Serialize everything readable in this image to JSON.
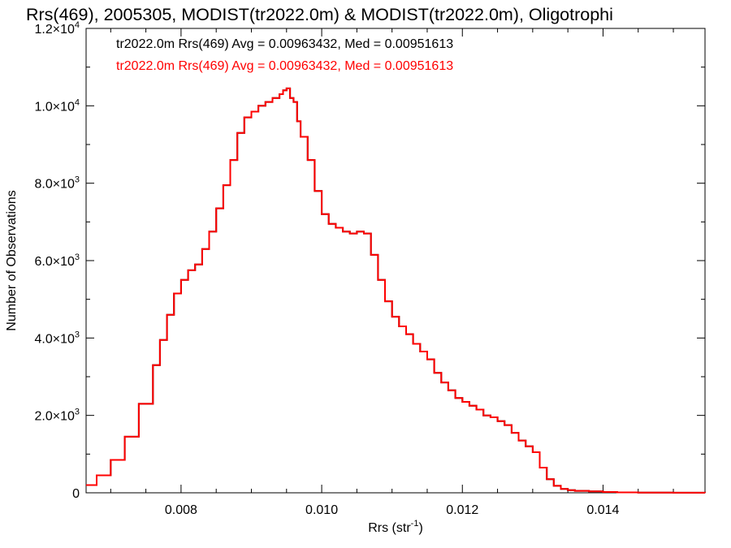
{
  "chart_data": {
    "type": "line",
    "title": "Rrs(469), 2005305, MODIST(tr2022.0m) & MODIST(tr2022.0m), Oligotrophi",
    "xlabel": "Rrs (str",
    "xlabel_sup": "-1",
    "xlabel_end": ")",
    "ylabel": "Number of Observations",
    "xlim": [
      0.00665,
      0.01545
    ],
    "ylim": [
      0,
      12000
    ],
    "xticks": [
      0.008,
      0.01,
      0.012,
      0.014
    ],
    "xtick_labels": [
      "0.008",
      "0.010",
      "0.012",
      "0.014"
    ],
    "yticks": [
      {
        "mant": "0",
        "exp": ""
      },
      {
        "mant": "2.0×10",
        "exp": "3"
      },
      {
        "mant": "4.0×10",
        "exp": "3"
      },
      {
        "mant": "6.0×10",
        "exp": "3"
      },
      {
        "mant": "8.0×10",
        "exp": "3"
      },
      {
        "mant": "1.0×10",
        "exp": "4"
      },
      {
        "mant": "1.2×10",
        "exp": "4"
      }
    ],
    "annotations": [
      {
        "text": "tr2022.0m Rrs(469) Avg = 0.00963432, Med = 0.00951613",
        "color": "#000000"
      },
      {
        "text": "tr2022.0m Rrs(469) Avg = 0.00963432, Med = 0.00951613",
        "color": "#ff0000"
      }
    ],
    "series": [
      {
        "color": "#000000",
        "x": [
          0.00665,
          0.0068,
          0.007,
          0.0072,
          0.0074,
          0.0076,
          0.0077,
          0.0078,
          0.0079,
          0.008,
          0.0081,
          0.0082,
          0.0083,
          0.0084,
          0.0085,
          0.0086,
          0.0087,
          0.0088,
          0.0089,
          0.009,
          0.0091,
          0.0092,
          0.0093,
          0.0094,
          0.00945,
          0.0095,
          0.00955,
          0.0096,
          0.00965,
          0.0097,
          0.0098,
          0.0099,
          0.01,
          0.0101,
          0.0102,
          0.0103,
          0.0104,
          0.0105,
          0.0106,
          0.0107,
          0.0108,
          0.0109,
          0.011,
          0.0111,
          0.0112,
          0.0113,
          0.0114,
          0.0115,
          0.0116,
          0.0117,
          0.0118,
          0.0119,
          0.012,
          0.0121,
          0.0122,
          0.0123,
          0.0124,
          0.0125,
          0.0126,
          0.0127,
          0.0128,
          0.0129,
          0.013,
          0.0131,
          0.0132,
          0.0133,
          0.0134,
          0.0135,
          0.0136,
          0.0138,
          0.014,
          0.0142,
          0.0145,
          0.015,
          0.01545
        ],
        "y": [
          200,
          450,
          850,
          1450,
          2300,
          3300,
          3950,
          4600,
          5150,
          5500,
          5750,
          5900,
          6300,
          6750,
          7350,
          7950,
          8600,
          9300,
          9700,
          9850,
          10000,
          10100,
          10200,
          10300,
          10400,
          10450,
          10200,
          10100,
          9600,
          9200,
          8600,
          7800,
          7200,
          6950,
          6850,
          6750,
          6700,
          6750,
          6700,
          6150,
          5500,
          4950,
          4550,
          4300,
          4100,
          3850,
          3650,
          3450,
          3100,
          2850,
          2650,
          2450,
          2350,
          2250,
          2150,
          2000,
          1950,
          1850,
          1750,
          1550,
          1350,
          1200,
          1050,
          650,
          350,
          180,
          100,
          70,
          50,
          35,
          20,
          10,
          5,
          2,
          0
        ]
      },
      {
        "color": "#ff0000",
        "x": [
          0.00665,
          0.0068,
          0.007,
          0.0072,
          0.0074,
          0.0076,
          0.0077,
          0.0078,
          0.0079,
          0.008,
          0.0081,
          0.0082,
          0.0083,
          0.0084,
          0.0085,
          0.0086,
          0.0087,
          0.0088,
          0.0089,
          0.009,
          0.0091,
          0.0092,
          0.0093,
          0.0094,
          0.00945,
          0.0095,
          0.00955,
          0.0096,
          0.00965,
          0.0097,
          0.0098,
          0.0099,
          0.01,
          0.0101,
          0.0102,
          0.0103,
          0.0104,
          0.0105,
          0.0106,
          0.0107,
          0.0108,
          0.0109,
          0.011,
          0.0111,
          0.0112,
          0.0113,
          0.0114,
          0.0115,
          0.0116,
          0.0117,
          0.0118,
          0.0119,
          0.012,
          0.0121,
          0.0122,
          0.0123,
          0.0124,
          0.0125,
          0.0126,
          0.0127,
          0.0128,
          0.0129,
          0.013,
          0.0131,
          0.0132,
          0.0133,
          0.0134,
          0.0135,
          0.0136,
          0.0138,
          0.014,
          0.0142,
          0.0145,
          0.015,
          0.01545
        ],
        "y": [
          200,
          450,
          850,
          1450,
          2300,
          3300,
          3950,
          4600,
          5150,
          5500,
          5750,
          5900,
          6300,
          6750,
          7350,
          7950,
          8600,
          9300,
          9700,
          9850,
          10000,
          10100,
          10200,
          10300,
          10400,
          10450,
          10200,
          10100,
          9600,
          9200,
          8600,
          7800,
          7200,
          6950,
          6850,
          6750,
          6700,
          6750,
          6700,
          6150,
          5500,
          4950,
          4550,
          4300,
          4100,
          3850,
          3650,
          3450,
          3100,
          2850,
          2650,
          2450,
          2350,
          2250,
          2150,
          2000,
          1950,
          1850,
          1750,
          1550,
          1350,
          1200,
          1050,
          650,
          350,
          180,
          100,
          70,
          50,
          35,
          20,
          10,
          5,
          2,
          0
        ]
      }
    ]
  }
}
